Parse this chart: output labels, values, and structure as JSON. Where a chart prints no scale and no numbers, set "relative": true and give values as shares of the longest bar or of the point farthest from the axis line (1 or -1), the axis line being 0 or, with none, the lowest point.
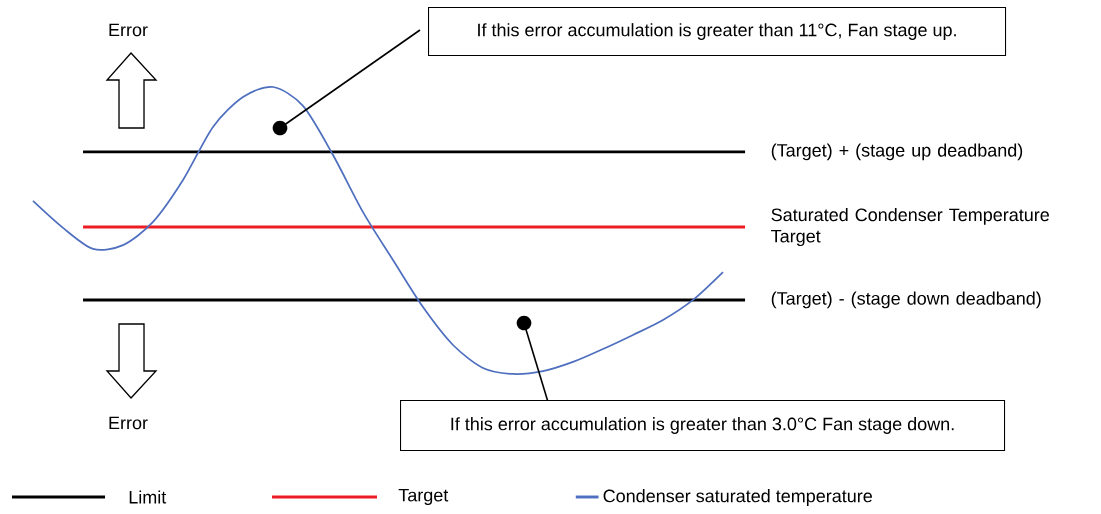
{
  "chart_data": {
    "type": "line",
    "relative": true,
    "legend": "bottom",
    "categories": [
      null,
      null,
      null,
      null,
      null,
      null,
      null,
      null,
      null,
      null,
      null,
      null,
      null,
      null,
      null,
      null,
      null,
      null,
      null,
      null,
      null,
      null,
      null,
      null
    ],
    "series": [
      {
        "name": "Condenser saturated temperature",
        "color": "#4f6fbf",
        "values": [
          0.603,
          0.509,
          0.436,
          0.449,
          0.53,
          0.676,
          0.861,
          0.965,
          1,
          0.934,
          0.763,
          0.564,
          0.397,
          0.233,
          0.101,
          0.021,
          0,
          0.01,
          0.042,
          0.087,
          0.136,
          0.188,
          0.258,
          0.355
        ]
      }
    ],
    "ref_lines": [
      {
        "axis": "y",
        "value": 0.774,
        "label": "(Target) + (stage up deadband)",
        "color": "#000000"
      },
      {
        "axis": "y",
        "value": 0.512,
        "label": "Saturated Condenser Temperature Target",
        "color": "#ed1c24"
      },
      {
        "axis": "y",
        "value": 0.258,
        "label": "(Target) - (stage down deadband)",
        "color": "#000000"
      }
    ],
    "annotations": [
      "Error",
      "Error",
      "If this error accumulation is greater than 11°C, Fan stage up.",
      "If this error accumulation is greater than 3.0°C Fan stage down.",
      "Limit",
      "Target"
    ]
  }
}
